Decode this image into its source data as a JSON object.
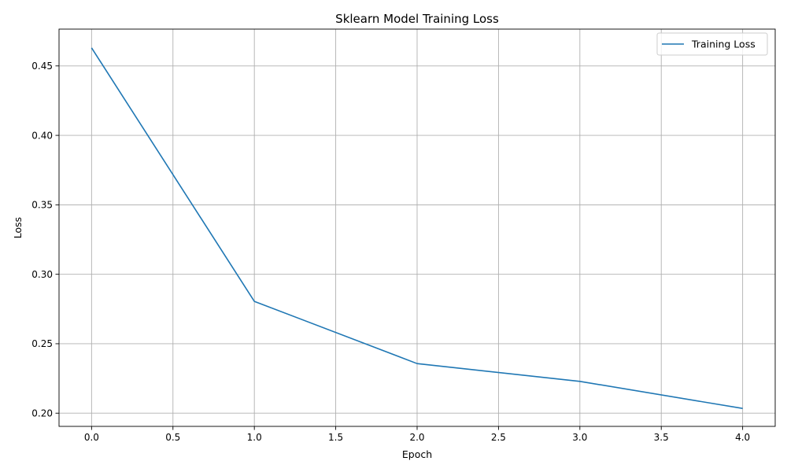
{
  "chart_data": {
    "type": "line",
    "title": "Sklearn Model Training Loss",
    "xlabel": "Epoch",
    "ylabel": "Loss",
    "xlim": [
      -0.2,
      4.2
    ],
    "ylim": [
      0.1905,
      0.4765
    ],
    "x_ticks": [
      0.0,
      0.5,
      1.0,
      1.5,
      2.0,
      2.5,
      3.0,
      3.5,
      4.0
    ],
    "x_tick_labels": [
      "0.0",
      "0.5",
      "1.0",
      "1.5",
      "2.0",
      "2.5",
      "3.0",
      "3.5",
      "4.0"
    ],
    "y_ticks": [
      0.2,
      0.25,
      0.3,
      0.35,
      0.4,
      0.45
    ],
    "y_tick_labels": [
      "0.20",
      "0.25",
      "0.30",
      "0.35",
      "0.40",
      "0.45"
    ],
    "grid": true,
    "legend_position": "top-right",
    "series": [
      {
        "name": "Training Loss",
        "color": "#1f77b4",
        "x": [
          0,
          1,
          2,
          3,
          4
        ],
        "y": [
          0.463,
          0.2805,
          0.2357,
          0.2229,
          0.2034
        ]
      }
    ]
  }
}
